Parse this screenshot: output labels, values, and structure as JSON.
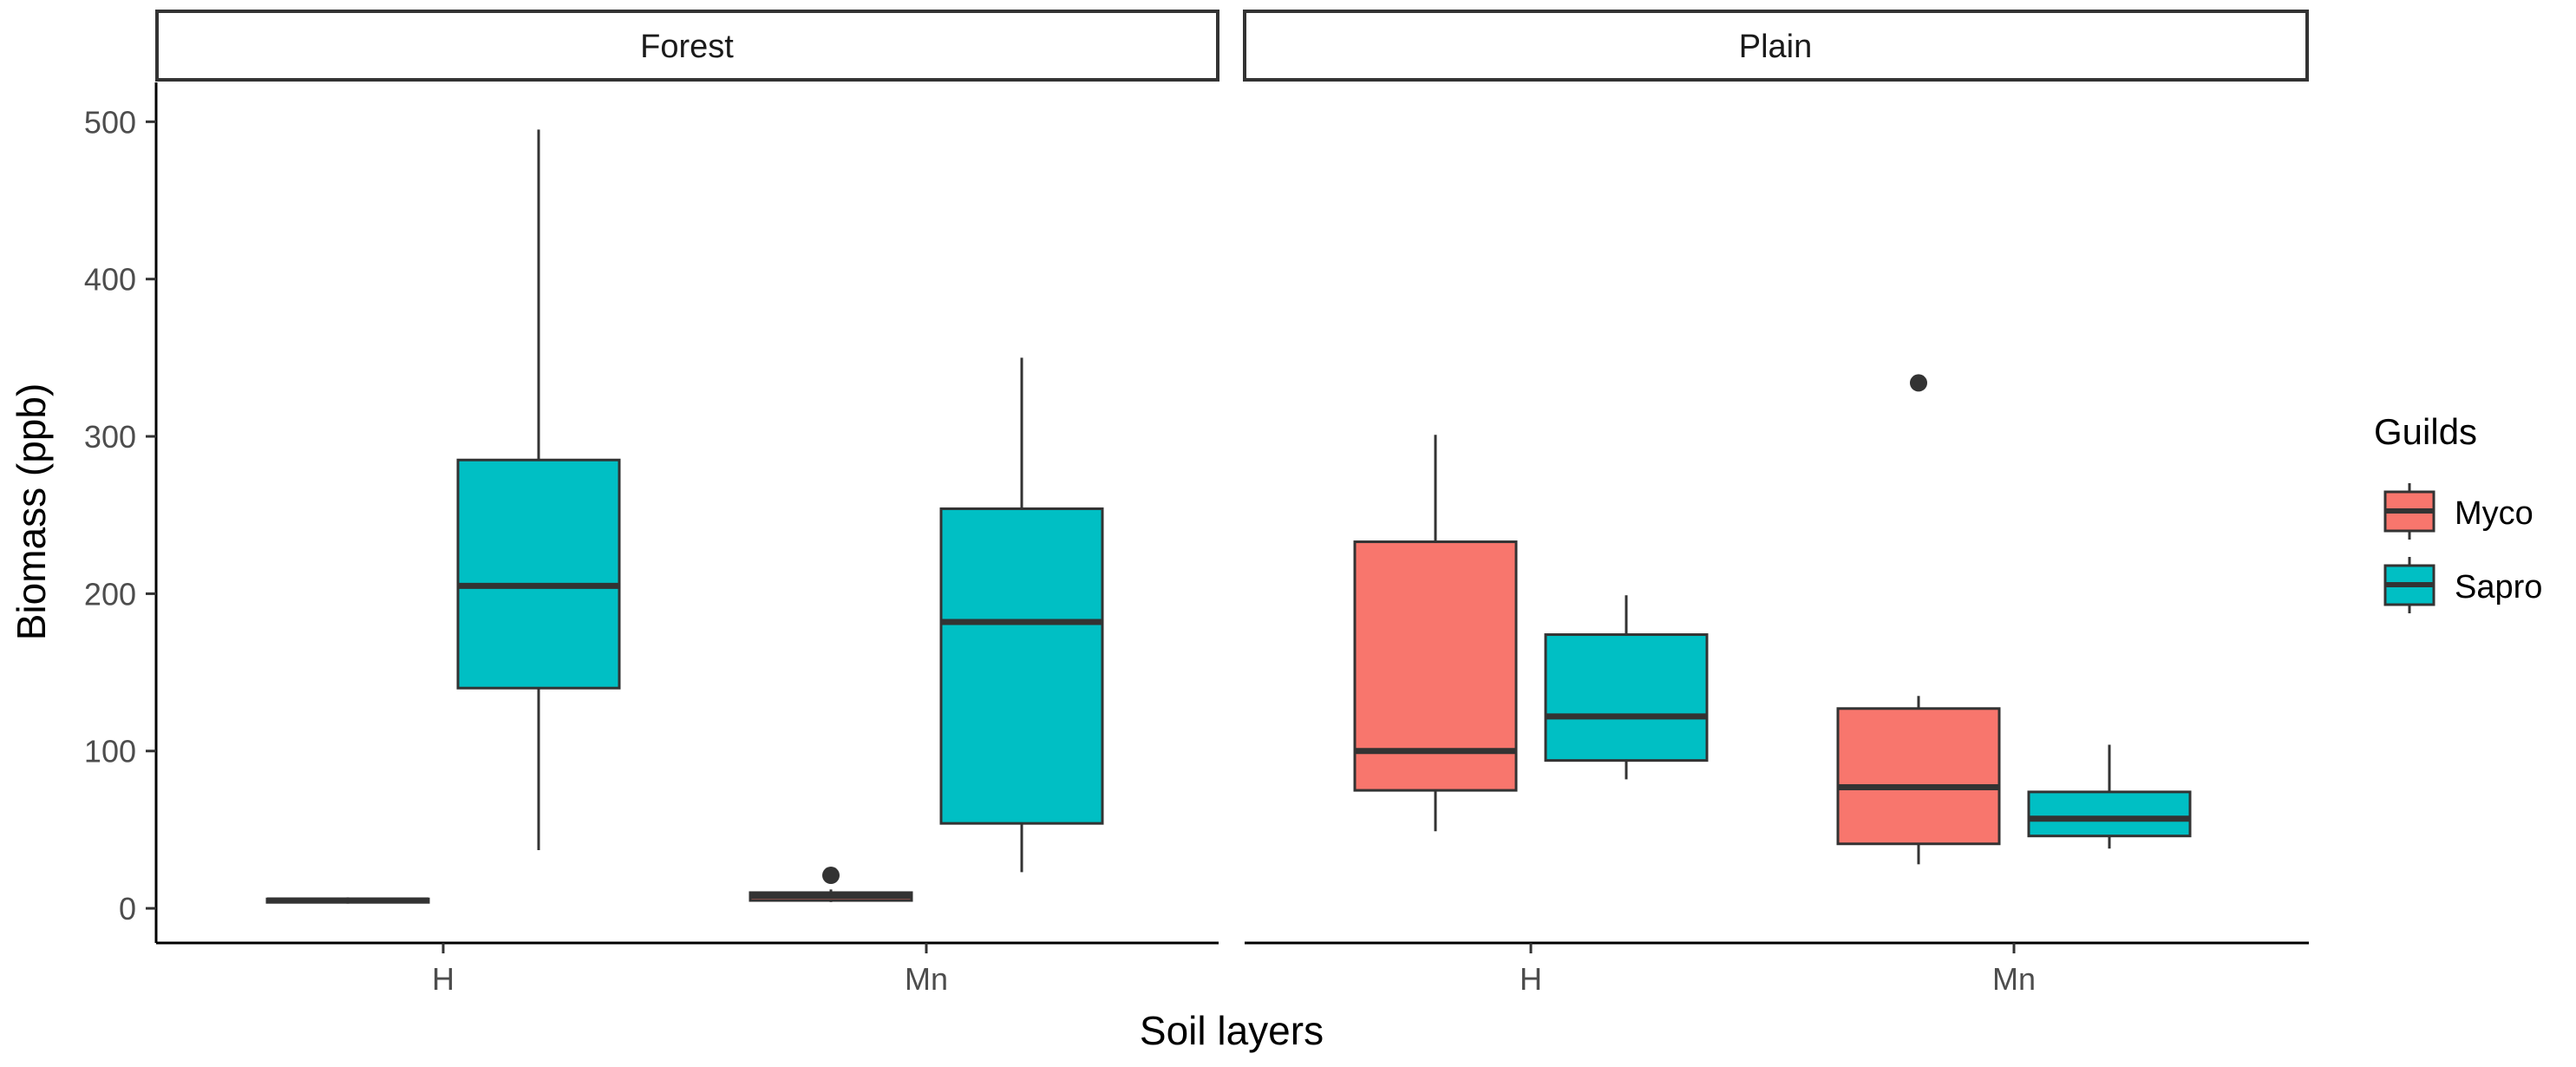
{
  "chart_data": {
    "type": "boxplot",
    "xlabel": "Soil layers",
    "ylabel": "Biomass (ppb)",
    "ylim": [
      -22,
      525
    ],
    "y_ticks": [
      0,
      100,
      200,
      300,
      400,
      500
    ],
    "categories": [
      "H",
      "Mn"
    ],
    "legend": {
      "title": "Guilds",
      "position": "right",
      "entries": [
        {
          "name": "Myco",
          "color": "#F8766D"
        },
        {
          "name": "Sapro",
          "color": "#00BFC4"
        }
      ]
    },
    "facets": [
      {
        "label": "Forest",
        "boxes": [
          {
            "category": "H",
            "guild": "Myco",
            "position": "left",
            "min": 3,
            "q1": 4,
            "median": 5,
            "q3": 6,
            "max": 7,
            "outliers": []
          },
          {
            "category": "H",
            "guild": "Sapro",
            "position": "right",
            "min": 37,
            "q1": 140,
            "median": 205,
            "q3": 285,
            "max": 495,
            "outliers": []
          },
          {
            "category": "Mn",
            "guild": "Myco",
            "position": "left",
            "min": 4,
            "q1": 5,
            "median": 8,
            "q3": 10,
            "max": 12,
            "outliers": [
              21
            ]
          },
          {
            "category": "Mn",
            "guild": "Sapro",
            "position": "right",
            "min": 23,
            "q1": 54,
            "median": 182,
            "q3": 254,
            "max": 350,
            "outliers": []
          }
        ]
      },
      {
        "label": "Plain",
        "boxes": [
          {
            "category": "H",
            "guild": "Myco",
            "position": "left",
            "min": 49,
            "q1": 75,
            "median": 100,
            "q3": 233,
            "max": 301,
            "outliers": []
          },
          {
            "category": "H",
            "guild": "Sapro",
            "position": "right",
            "min": 82,
            "q1": 94,
            "median": 122,
            "q3": 174,
            "max": 199,
            "outliers": []
          },
          {
            "category": "Mn",
            "guild": "Myco",
            "position": "left",
            "min": 28,
            "q1": 41,
            "median": 77,
            "q3": 127,
            "max": 135,
            "outliers": [
              334
            ]
          },
          {
            "category": "Mn",
            "guild": "Sapro",
            "position": "right",
            "min": 38,
            "q1": 46,
            "median": 57,
            "q3": 74,
            "max": 104,
            "outliers": []
          }
        ]
      }
    ]
  }
}
